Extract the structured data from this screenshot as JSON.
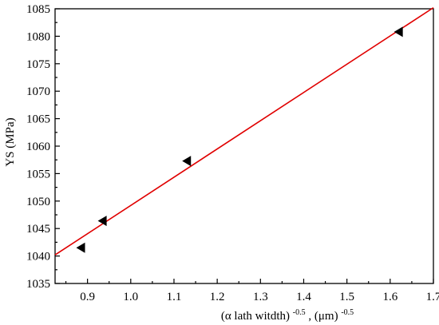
{
  "chart_data": {
    "type": "scatter",
    "title": "",
    "xlabel": {
      "prefix": "(α  lath witdth)",
      "prefix_exponent": "-0.5",
      "suffix": ", (μm)",
      "suffix_exponent": "-0.5"
    },
    "ylabel": "YS (MPa)",
    "xlim": [
      0.825,
      1.7
    ],
    "ylim": [
      1035,
      1085
    ],
    "xticks": [
      "0.9",
      "1.0",
      "1.1",
      "1.2",
      "1.3",
      "1.4",
      "1.5",
      "1.6",
      "1.7"
    ],
    "xtick_values": [
      0.9,
      1.0,
      1.1,
      1.2,
      1.3,
      1.4,
      1.5,
      1.6,
      1.7
    ],
    "yticks": [
      "1035",
      "1040",
      "1045",
      "1050",
      "1055",
      "1060",
      "1065",
      "1070",
      "1075",
      "1080",
      "1085"
    ],
    "ytick_values": [
      1035,
      1040,
      1045,
      1050,
      1055,
      1060,
      1065,
      1070,
      1075,
      1080,
      1085
    ],
    "grid": false,
    "legend": "none",
    "series": [
      {
        "marker": "left-triangle",
        "color": "#000000",
        "points": [
          {
            "x": 0.885,
            "y": 1041.5
          },
          {
            "x": 0.935,
            "y": 1046.4
          },
          {
            "x": 1.13,
            "y": 1057.3
          },
          {
            "x": 1.62,
            "y": 1080.8
          }
        ]
      }
    ],
    "fit_line": {
      "color": "#e00000",
      "x": [
        0.825,
        1.7
      ],
      "y": [
        1040.2,
        1085.2
      ]
    }
  }
}
